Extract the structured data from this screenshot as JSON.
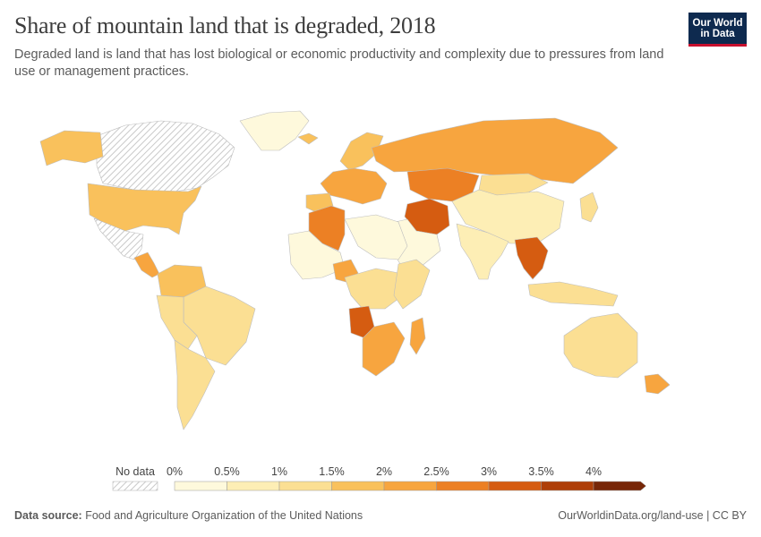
{
  "header": {
    "title": "Share of mountain land that is degraded, 2018",
    "subtitle": "Degraded land is land that has lost biological or economic productivity and complexity due to pressures from land use or management practices.",
    "logo_line1": "Our World",
    "logo_line2": "in Data"
  },
  "legend": {
    "no_data_label": "No data",
    "bins": [
      {
        "label": "0%",
        "color": "#fef9dc"
      },
      {
        "label": "0.5%",
        "color": "#fdeeb5"
      },
      {
        "label": "1%",
        "color": "#fbdf93"
      },
      {
        "label": "1.5%",
        "color": "#f9c15c"
      },
      {
        "label": "2%",
        "color": "#f7a53f"
      },
      {
        "label": "2.5%",
        "color": "#ec8024"
      },
      {
        "label": "3%",
        "color": "#d55c11"
      },
      {
        "label": "3.5%",
        "color": "#ae3f08"
      },
      {
        "label": "4%",
        "color": "#772708"
      }
    ]
  },
  "map": {
    "regions": [
      {
        "name": "canada",
        "color": "no-data"
      },
      {
        "name": "greenland",
        "color": "#fef9dc"
      },
      {
        "name": "alaska",
        "color": "#f9c15c"
      },
      {
        "name": "usa",
        "color": "#f9c15c"
      },
      {
        "name": "mexico",
        "color": "no-data"
      },
      {
        "name": "central-america",
        "color": "#f7a53f"
      },
      {
        "name": "colombia-venezuela",
        "color": "#f9c15c"
      },
      {
        "name": "brazil",
        "color": "#fbdf93"
      },
      {
        "name": "peru-bolivia",
        "color": "#fbdf93"
      },
      {
        "name": "argentina-chile",
        "color": "#fbdf93"
      },
      {
        "name": "iceland",
        "color": "#f9c15c"
      },
      {
        "name": "scandinavia",
        "color": "#f9c15c"
      },
      {
        "name": "western-europe",
        "color": "#f7a53f"
      },
      {
        "name": "iberia",
        "color": "#f9c15c"
      },
      {
        "name": "russia",
        "color": "#f7a53f"
      },
      {
        "name": "kazakhstan",
        "color": "#ec8024"
      },
      {
        "name": "mongolia",
        "color": "#fbdf93"
      },
      {
        "name": "china",
        "color": "#fdeeb5"
      },
      {
        "name": "iran",
        "color": "#d55c11"
      },
      {
        "name": "arabia",
        "color": "#fef9dc"
      },
      {
        "name": "india",
        "color": "#fdeeb5"
      },
      {
        "name": "southeast-asia",
        "color": "#d55c11"
      },
      {
        "name": "japan",
        "color": "#fbdf93"
      },
      {
        "name": "north-africa",
        "color": "#fef9dc"
      },
      {
        "name": "algeria",
        "color": "#ec8024"
      },
      {
        "name": "west-africa",
        "color": "#fef9dc"
      },
      {
        "name": "nigeria",
        "color": "#f7a53f"
      },
      {
        "name": "central-africa",
        "color": "#fbdf93"
      },
      {
        "name": "angola",
        "color": "#d55c11"
      },
      {
        "name": "east-africa",
        "color": "#fbdf93"
      },
      {
        "name": "southern-africa",
        "color": "#f7a53f"
      },
      {
        "name": "madagascar",
        "color": "#f7a53f"
      },
      {
        "name": "indonesia",
        "color": "#fbdf93"
      },
      {
        "name": "australia",
        "color": "#fbdf93"
      },
      {
        "name": "new-zealand",
        "color": "#f7a53f"
      }
    ]
  },
  "footer": {
    "source_label": "Data source:",
    "source_text": "Food and Agriculture Organization of the United Nations",
    "url_text": "OurWorldinData.org/land-use | CC BY"
  }
}
